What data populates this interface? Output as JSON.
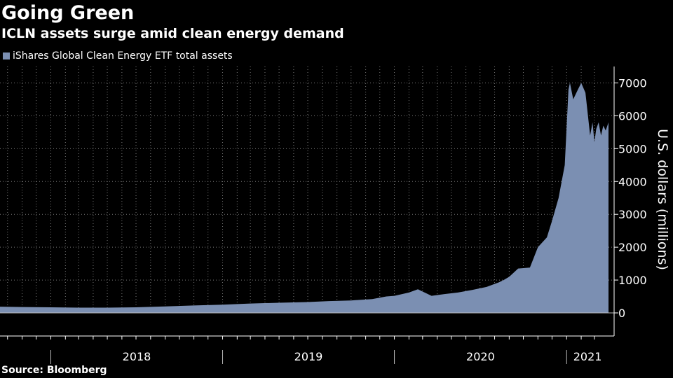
{
  "title": "Going Green",
  "subtitle": "ICLN assets surge amid clean energy demand",
  "source": "Source: Bloomberg",
  "colors": {
    "background": "#000000",
    "area": "#7b8fb2",
    "grid": "#7a7a7a",
    "axis": "#ffffff"
  },
  "chart_data": {
    "type": "area",
    "legend": [
      "iShares Global Clean Energy ETF total assets"
    ],
    "legend_position": "top-left",
    "xlabel": "",
    "ylabel": "U.S. dollars (millions)",
    "y_axis_side": "right",
    "ylim": [
      0,
      7500
    ],
    "y_ticks": [
      0,
      1000,
      2000,
      3000,
      4000,
      5000,
      6000,
      7000
    ],
    "y_tick_labels": [
      "0",
      "1000",
      "2000",
      "3000",
      "4000",
      "5000",
      "6000",
      "7000"
    ],
    "grid": true,
    "xlim": [
      "2017-09-15",
      "2021-03-31"
    ],
    "year_boundaries": [
      "2018-01-01",
      "2019-01-01",
      "2020-01-01",
      "2021-01-01"
    ],
    "x_labels": [
      "2018",
      "2019",
      "2020",
      "2021"
    ],
    "series": [
      {
        "name": "iShares Global Clean Energy ETF total assets",
        "x": [
          "2017-09-15",
          "2017-11-01",
          "2018-01-01",
          "2018-03-01",
          "2018-05-01",
          "2018-07-01",
          "2018-09-01",
          "2018-11-01",
          "2019-01-01",
          "2019-03-01",
          "2019-05-01",
          "2019-07-01",
          "2019-08-15",
          "2019-10-01",
          "2019-11-15",
          "2019-12-15",
          "2020-01-01",
          "2020-02-01",
          "2020-02-20",
          "2020-03-20",
          "2020-04-15",
          "2020-05-15",
          "2020-06-15",
          "2020-07-15",
          "2020-08-10",
          "2020-08-20",
          "2020-09-01",
          "2020-09-20",
          "2020-10-15",
          "2020-11-01",
          "2020-11-20",
          "2020-12-01",
          "2020-12-15",
          "2020-12-28",
          "2021-01-05",
          "2021-01-08",
          "2021-01-15",
          "2021-01-25",
          "2021-02-01",
          "2021-02-10",
          "2021-02-20",
          "2021-02-25",
          "2021-03-01",
          "2021-03-05",
          "2021-03-10",
          "2021-03-15",
          "2021-03-20",
          "2021-03-25",
          "2021-03-31"
        ],
        "values": [
          190,
          180,
          170,
          160,
          160,
          170,
          195,
          225,
          250,
          285,
          310,
          330,
          360,
          380,
          420,
          500,
          520,
          620,
          720,
          520,
          570,
          620,
          700,
          790,
          930,
          1000,
          1100,
          1350,
          1380,
          2000,
          2300,
          2800,
          3500,
          4500,
          6800,
          7000,
          6500,
          6800,
          7000,
          6700,
          5400,
          5800,
          5200,
          5600,
          5800,
          5400,
          5700,
          5550,
          5800
        ]
      }
    ]
  }
}
